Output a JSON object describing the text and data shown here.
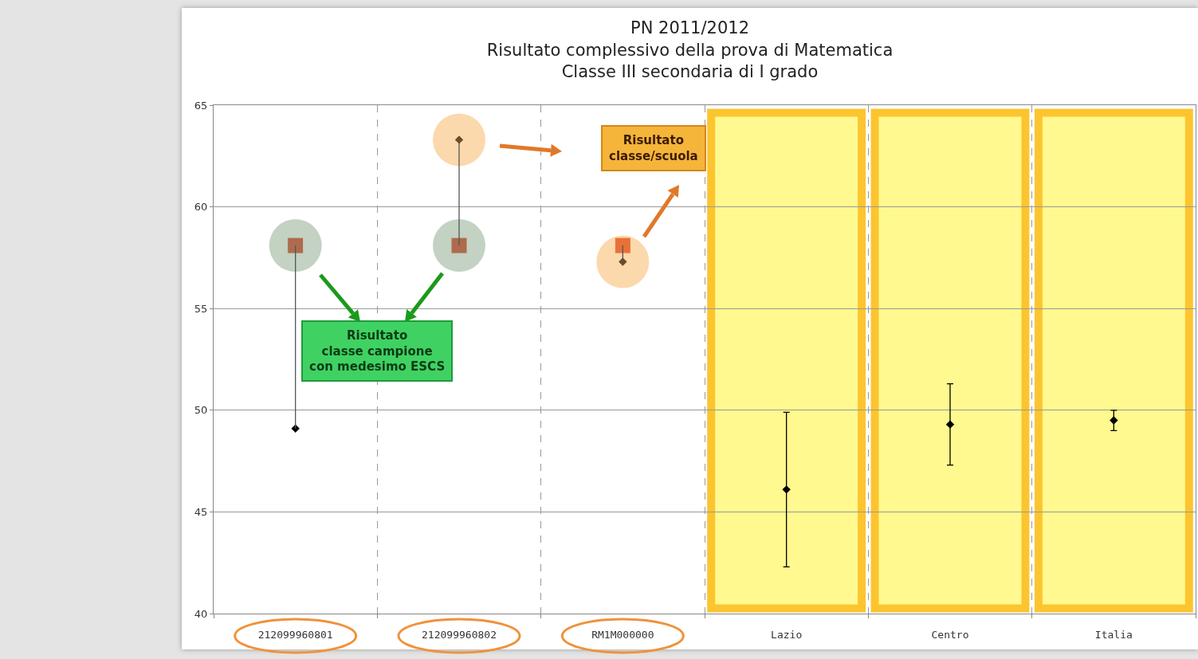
{
  "chart_data": {
    "type": "scatter",
    "title": "PN 2011/2012",
    "subtitle": "Risultato complessivo della prova di Matematica\nClasse III secondaria di I grado",
    "categories": [
      "212099960801",
      "212099960802",
      "RM1M000000",
      "Lazio",
      "Centro",
      "Italia"
    ],
    "series": [
      {
        "color": "#000000",
        "marker": "diamond",
        "values": [
          49.1,
          63.3,
          57.3,
          46.1,
          49.3,
          49.5
        ],
        "errors": [
          null,
          null,
          null,
          [
            42.3,
            49.9
          ],
          [
            47.3,
            51.3
          ],
          [
            49.0,
            50.0
          ]
        ]
      },
      {
        "color": "#d9442b",
        "marker": "square",
        "values": [
          58.1,
          58.1,
          58.1,
          null,
          null,
          null
        ]
      }
    ],
    "ylim": [
      40,
      65
    ],
    "yticks": [
      40,
      45,
      50,
      55,
      60,
      65
    ],
    "grid": true,
    "legend": false,
    "bands": [
      {
        "axis": "x",
        "from": "Lazio",
        "to": "Lazio",
        "color": "#fff98f"
      },
      {
        "axis": "x",
        "from": "Centro",
        "to": "Centro",
        "color": "#fff98f"
      },
      {
        "axis": "x",
        "from": "Italia",
        "to": "Italia",
        "color": "#fff98f"
      }
    ],
    "annotations": [
      "Risultato\nclasse campione\ncon medesimo ESCS",
      "Risultato\nclasse/scuola"
    ]
  }
}
